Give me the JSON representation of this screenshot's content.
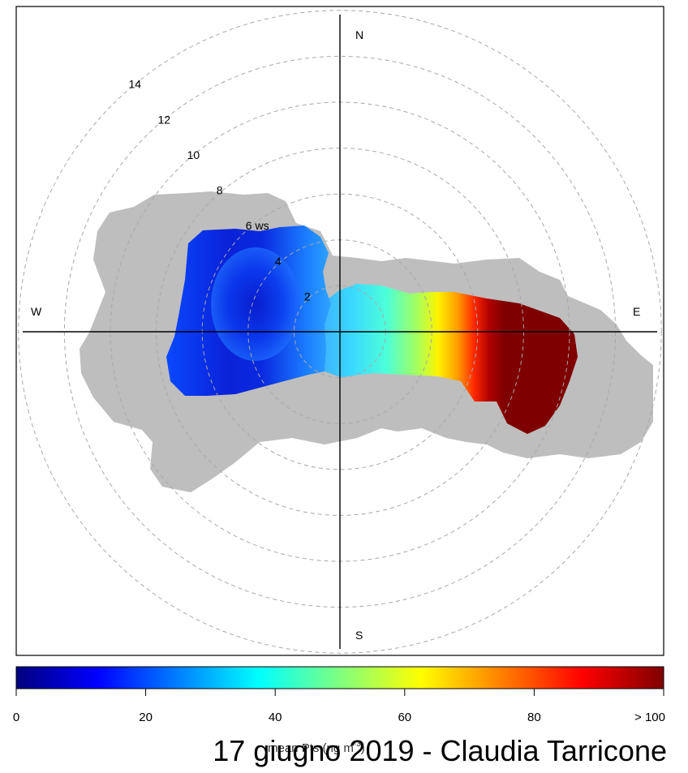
{
  "chart_data": {
    "type": "polar-plot",
    "rings": [
      2,
      4,
      6,
      8,
      10,
      12,
      14
    ],
    "ring_suffix": "ws",
    "directions": {
      "n": "N",
      "e": "E",
      "s": "S",
      "w": "W"
    },
    "colorbar": {
      "min": 0,
      "max": 100,
      "ticks": [
        "0",
        "20",
        "40",
        "60",
        "80",
        "> 100"
      ],
      "title": "mean Pts (ng m",
      "title_sup": "-3",
      "title_end": ")",
      "colors": [
        "#00007f",
        "#0000ff",
        "#007fff",
        "#00ffff",
        "#7fff7f",
        "#ffff00",
        "#ff7f00",
        "#ff0000",
        "#7f0000"
      ]
    },
    "grey_region_color": "#bebebe",
    "note": ""
  },
  "caption": "17 giugno 2019 - Claudia Tarricone"
}
